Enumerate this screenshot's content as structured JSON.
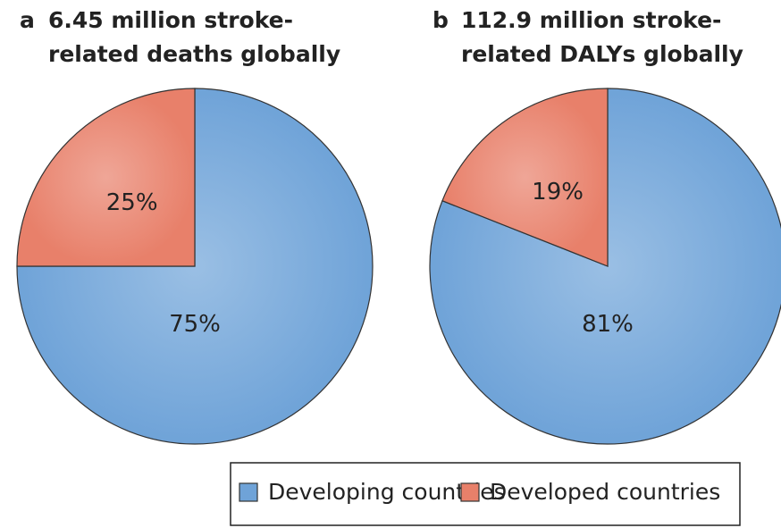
{
  "chart_data": [
    {
      "type": "pie",
      "panel": "a",
      "title_lines": [
        "6.45 million stroke-",
        "related deaths globally"
      ],
      "categories": [
        "Developing countries",
        "Developed countries"
      ],
      "values": [
        75,
        25
      ],
      "value_labels": [
        "75%",
        "25%"
      ],
      "colors": [
        "#6fa3d8",
        "#e8806a"
      ]
    },
    {
      "type": "pie",
      "panel": "b",
      "title_lines": [
        "112.9 million stroke-",
        "related DALYs globally"
      ],
      "categories": [
        "Developing countries",
        "Developed countries"
      ],
      "values": [
        81,
        19
      ],
      "value_labels": [
        "81%",
        "19%"
      ],
      "colors": [
        "#6fa3d8",
        "#e8806a"
      ]
    }
  ]
}
